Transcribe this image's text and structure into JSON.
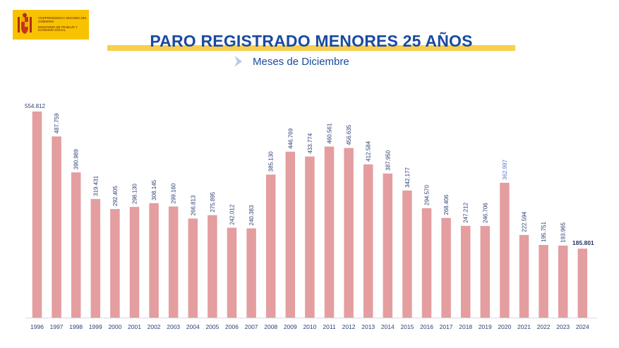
{
  "header": {
    "logo_line1": "VICEPRESIDENCIA SEGUNDA DEL GOBIERNO",
    "logo_line2": "MINISTERIO DE TRABAJO Y ECONOMÍA SOCIAL",
    "title": "PARO REGISTRADO MENORES 25 AÑOS",
    "subtitle": "Meses de Diciembre"
  },
  "colors": {
    "bar": "#e49ea0",
    "title": "#1a4aa0",
    "band": "#f7cf4a",
    "logo_bg": "#f7c200",
    "label": "#2d3f73",
    "highlight_label": "#5b7bd0"
  },
  "chart_data": {
    "type": "bar",
    "title": "PARO REGISTRADO MENORES 25 AÑOS",
    "subtitle": "Meses de Diciembre",
    "xlabel": "",
    "ylabel": "",
    "categories": [
      "1996",
      "1997",
      "1998",
      "1999",
      "2000",
      "2001",
      "2002",
      "2003",
      "2004",
      "2005",
      "2006",
      "2007",
      "2008",
      "2009",
      "2010",
      "2011",
      "2012",
      "2013",
      "2014",
      "2015",
      "2016",
      "2017",
      "2018",
      "2019",
      "2020",
      "2021",
      "2022",
      "2023",
      "2024"
    ],
    "values": [
      554812,
      487759,
      390989,
      319431,
      292405,
      298130,
      308145,
      299160,
      266813,
      275895,
      242012,
      240383,
      385130,
      446769,
      433774,
      460561,
      456635,
      412584,
      387950,
      342177,
      294570,
      268406,
      247212,
      246706,
      362997,
      222594,
      195751,
      193965,
      185801
    ],
    "value_labels": [
      "554.812",
      "487.759",
      "390.989",
      "319.431",
      "292.405",
      "298.130",
      "308.145",
      "299.160",
      "266.813",
      "275.895",
      "242.012",
      "240.383",
      "385.130",
      "446.769",
      "433.774",
      "460.561",
      "456.635",
      "412.584",
      "387.950",
      "342.177",
      "294.570",
      "268.406",
      "247.212",
      "246.706",
      "362.997",
      "222.594",
      "195.751",
      "193.965",
      "185.801"
    ],
    "ylim": [
      0,
      554812
    ],
    "grid": false,
    "legend": "none"
  }
}
